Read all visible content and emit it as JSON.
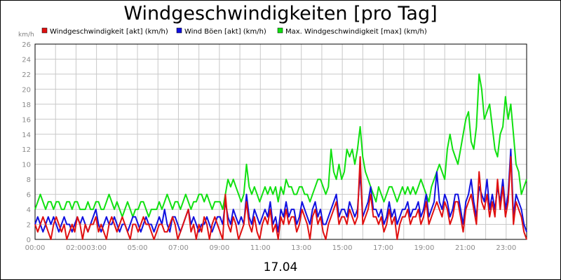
{
  "chart_data": {
    "type": "line",
    "title": "Windgeschwindigkeiten [pro Tag]",
    "ylabel": "km/h",
    "date_label": "17.04",
    "ylim": [
      0,
      26
    ],
    "y_ticks": [
      "0",
      "2",
      "4",
      "6",
      "8",
      "10",
      "12",
      "14",
      "16",
      "18",
      "20",
      "22",
      "24",
      "26"
    ],
    "x_ticks": [
      "00:00",
      "02:00",
      "03:00",
      "05:00",
      "07:00",
      "09:00",
      "11:00",
      "13:00",
      "15:00",
      "17:00",
      "19:00",
      "21:00",
      "23:00"
    ],
    "x_tick_hours": [
      0,
      2.0,
      3.0,
      5.0,
      7.0,
      9.0,
      11.0,
      13.0,
      15.0,
      17.0,
      19.0,
      21.0,
      23.0
    ],
    "xlim_hours": [
      0,
      24
    ],
    "grid": true,
    "legend_position": "top",
    "series": [
      {
        "name": "Windgeschwindigkeit [akt] (km/h)",
        "color": "#e01010",
        "values": [
          2,
          1,
          2,
          3,
          2,
          1,
          0,
          2,
          3,
          2,
          1,
          2,
          0,
          1,
          2,
          1,
          3,
          2,
          0,
          2,
          1,
          2,
          2,
          3,
          1,
          2,
          1,
          0,
          2,
          3,
          2,
          1,
          2,
          3,
          2,
          1,
          0,
          2,
          2,
          1,
          2,
          3,
          2,
          2,
          1,
          0,
          1,
          2,
          2,
          1,
          1,
          2,
          3,
          2,
          0,
          1,
          2,
          3,
          4,
          1,
          2,
          0,
          2,
          1,
          3,
          2,
          0,
          2,
          3,
          2,
          1,
          0,
          6,
          2,
          1,
          3,
          2,
          0,
          1,
          2,
          5,
          2,
          1,
          3,
          1,
          0,
          2,
          3,
          2,
          4,
          1,
          2,
          0,
          3,
          2,
          4,
          2,
          3,
          3,
          1,
          2,
          4,
          3,
          2,
          0,
          3,
          4,
          2,
          3,
          1,
          0,
          2,
          3,
          4,
          5,
          2,
          3,
          3,
          2,
          4,
          3,
          2,
          3,
          11,
          2,
          3,
          4,
          6,
          3,
          3,
          2,
          3,
          1,
          2,
          4,
          2,
          3,
          0,
          2,
          3,
          3,
          4,
          2,
          3,
          3,
          4,
          2,
          3,
          5,
          2,
          3,
          4,
          5,
          4,
          3,
          5,
          4,
          2,
          3,
          5,
          5,
          3,
          1,
          4,
          5,
          6,
          4,
          2,
          9,
          5,
          4,
          6,
          3,
          5,
          3,
          8,
          4,
          7,
          3,
          5,
          11,
          2,
          5,
          4,
          3,
          1,
          0
        ]
      },
      {
        "name": "Wind Böen [akt] (km/h)",
        "color": "#1010e0",
        "values": [
          2,
          3,
          2,
          1,
          2,
          3,
          2,
          3,
          2,
          1,
          2,
          3,
          2,
          2,
          1,
          2,
          3,
          2,
          3,
          2,
          1,
          2,
          3,
          4,
          2,
          1,
          2,
          3,
          2,
          2,
          3,
          2,
          1,
          2,
          2,
          1,
          2,
          3,
          3,
          2,
          1,
          2,
          3,
          2,
          2,
          1,
          2,
          3,
          2,
          4,
          2,
          1,
          3,
          3,
          2,
          1,
          2,
          3,
          4,
          2,
          3,
          2,
          1,
          2,
          2,
          3,
          2,
          1,
          2,
          3,
          3,
          2,
          5,
          3,
          2,
          4,
          3,
          2,
          3,
          2,
          6,
          3,
          2,
          4,
          3,
          2,
          3,
          4,
          3,
          5,
          2,
          3,
          1,
          4,
          3,
          5,
          3,
          4,
          4,
          2,
          3,
          5,
          4,
          3,
          2,
          4,
          5,
          3,
          4,
          2,
          2,
          3,
          4,
          5,
          6,
          3,
          4,
          4,
          3,
          5,
          4,
          3,
          4,
          9,
          3,
          4,
          5,
          7,
          4,
          4,
          3,
          4,
          2,
          3,
          5,
          3,
          4,
          2,
          3,
          4,
          4,
          5,
          3,
          4,
          4,
          5,
          3,
          4,
          6,
          3,
          4,
          5,
          9,
          5,
          4,
          6,
          5,
          3,
          4,
          6,
          6,
          4,
          2,
          5,
          6,
          8,
          5,
          3,
          7,
          6,
          5,
          8,
          4,
          6,
          4,
          7,
          5,
          8,
          4,
          6,
          12,
          3,
          6,
          5,
          4,
          2,
          1
        ]
      },
      {
        "name": "Max. Windgeschwindigkeit [max] (km/h)",
        "color": "#10e010",
        "values": [
          4,
          5,
          6,
          5,
          4,
          5,
          5,
          4,
          5,
          5,
          4,
          4,
          5,
          5,
          4,
          5,
          5,
          4,
          4,
          4,
          5,
          4,
          4,
          5,
          5,
          4,
          4,
          5,
          6,
          5,
          4,
          5,
          4,
          3,
          4,
          5,
          4,
          3,
          4,
          4,
          5,
          5,
          4,
          3,
          4,
          4,
          4,
          5,
          4,
          5,
          6,
          5,
          4,
          5,
          5,
          4,
          5,
          6,
          5,
          4,
          5,
          5,
          6,
          6,
          5,
          6,
          5,
          4,
          5,
          5,
          5,
          4,
          6,
          8,
          7,
          8,
          7,
          6,
          5,
          6,
          10,
          7,
          6,
          7,
          6,
          5,
          6,
          7,
          6,
          7,
          6,
          7,
          5,
          7,
          6,
          8,
          7,
          7,
          6,
          6,
          7,
          7,
          6,
          6,
          5,
          6,
          7,
          8,
          8,
          7,
          6,
          7,
          12,
          9,
          8,
          10,
          8,
          9,
          12,
          11,
          12,
          10,
          12,
          15,
          11,
          9,
          8,
          7,
          6,
          5,
          7,
          6,
          5,
          6,
          7,
          7,
          6,
          5,
          6,
          7,
          6,
          7,
          6,
          7,
          6,
          7,
          8,
          7,
          6,
          5,
          7,
          8,
          9,
          10,
          9,
          8,
          12,
          14,
          12,
          11,
          10,
          12,
          14,
          16,
          17,
          13,
          12,
          15,
          22,
          20,
          16,
          17,
          18,
          15,
          12,
          11,
          14,
          15,
          19,
          16,
          18,
          14,
          10,
          9,
          6,
          7,
          8
        ]
      }
    ]
  }
}
